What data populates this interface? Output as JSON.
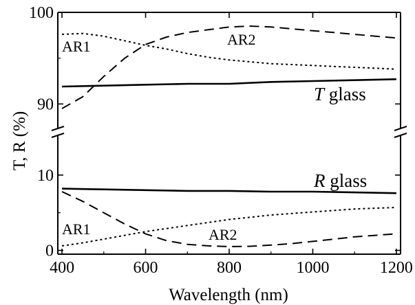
{
  "chart_data": {
    "type": "line",
    "xlabel": "Wavelength (nm)",
    "ylabel": "T, R (%)",
    "xlim": [
      390,
      1210
    ],
    "x_ticks": [
      "400",
      "600",
      "800",
      "1000",
      "1200"
    ],
    "broken_axis": true,
    "upper_panel": {
      "ylim": [
        88,
        100
      ],
      "y_ticks": [
        "90",
        "100"
      ]
    },
    "lower_panel": {
      "ylim": [
        -0.5,
        15
      ],
      "y_ticks": [
        "0",
        "10"
      ]
    },
    "grid": false,
    "legend": "none",
    "series": [
      {
        "panel": "upper",
        "style": "solid",
        "x": [
          400,
          500,
          600,
          700,
          800,
          900,
          1000,
          1100,
          1200
        ],
        "values": [
          91.9,
          92.0,
          92.1,
          92.2,
          92.2,
          92.4,
          92.5,
          92.6,
          92.7
        ]
      },
      {
        "panel": "upper",
        "style": "dotted",
        "x": [
          400,
          450,
          500,
          550,
          600,
          650,
          700,
          750,
          800,
          850,
          900,
          950,
          1000,
          1050,
          1100,
          1150,
          1200
        ],
        "values": [
          97.6,
          97.7,
          97.4,
          96.9,
          96.4,
          96.0,
          95.5,
          95.1,
          94.8,
          94.6,
          94.4,
          94.3,
          94.2,
          94.1,
          94.0,
          93.9,
          93.8
        ]
      },
      {
        "panel": "upper",
        "style": "dashed",
        "x": [
          400,
          450,
          500,
          550,
          600,
          650,
          700,
          750,
          800,
          850,
          900,
          950,
          1000,
          1050,
          1100,
          1150,
          1200
        ],
        "values": [
          89.5,
          90.8,
          93.0,
          95.0,
          96.5,
          97.3,
          97.8,
          98.1,
          98.4,
          98.5,
          98.4,
          98.2,
          98.0,
          97.8,
          97.6,
          97.4,
          97.2
        ]
      },
      {
        "panel": "lower",
        "style": "solid",
        "x": [
          400,
          500,
          600,
          700,
          800,
          900,
          1000,
          1100,
          1200
        ],
        "values": [
          8.2,
          8.1,
          8.0,
          7.9,
          7.9,
          7.8,
          7.8,
          7.7,
          7.6
        ]
      },
      {
        "panel": "lower",
        "style": "dotted",
        "x": [
          400,
          450,
          500,
          550,
          600,
          650,
          700,
          750,
          800,
          850,
          900,
          950,
          1000,
          1050,
          1100,
          1150,
          1200
        ],
        "values": [
          0.6,
          1.0,
          1.5,
          2.0,
          2.5,
          2.9,
          3.3,
          3.7,
          4.1,
          4.4,
          4.7,
          4.9,
          5.1,
          5.3,
          5.5,
          5.6,
          5.7
        ]
      },
      {
        "panel": "lower",
        "style": "dashed",
        "x": [
          400,
          450,
          500,
          550,
          600,
          650,
          700,
          750,
          800,
          850,
          900,
          950,
          1000,
          1050,
          1100,
          1150,
          1200
        ],
        "values": [
          7.8,
          6.5,
          5.0,
          3.5,
          2.2,
          1.3,
          0.8,
          0.6,
          0.5,
          0.55,
          0.7,
          0.9,
          1.2,
          1.5,
          1.8,
          2.0,
          2.2
        ]
      }
    ],
    "annotations": {
      "ar1_upper": "AR1",
      "ar2_upper": "AR2",
      "t_glass_italic": "T",
      "t_glass_rest": " glass",
      "ar1_lower": "AR1",
      "ar2_lower": "AR2",
      "r_glass_italic": "R",
      "r_glass_rest": " glass"
    }
  }
}
